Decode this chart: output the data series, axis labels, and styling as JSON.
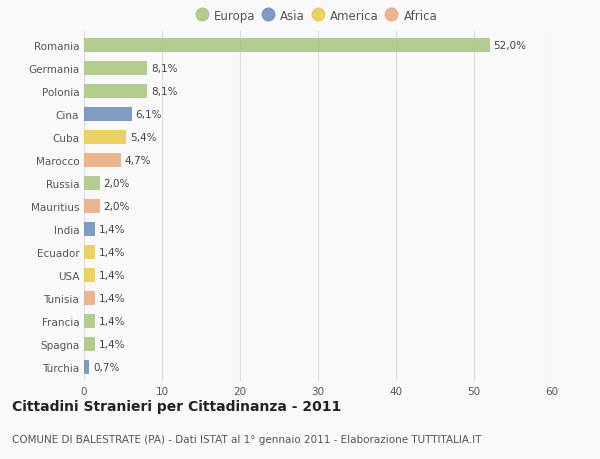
{
  "countries": [
    "Romania",
    "Germania",
    "Polonia",
    "Cina",
    "Cuba",
    "Marocco",
    "Russia",
    "Mauritius",
    "India",
    "Ecuador",
    "USA",
    "Tunisia",
    "Francia",
    "Spagna",
    "Turchia"
  ],
  "values": [
    52.0,
    8.1,
    8.1,
    6.1,
    5.4,
    4.7,
    2.0,
    2.0,
    1.4,
    1.4,
    1.4,
    1.4,
    1.4,
    1.4,
    0.7
  ],
  "labels": [
    "52,0%",
    "8,1%",
    "8,1%",
    "6,1%",
    "5,4%",
    "4,7%",
    "2,0%",
    "2,0%",
    "1,4%",
    "1,4%",
    "1,4%",
    "1,4%",
    "1,4%",
    "1,4%",
    "0,7%"
  ],
  "continents": [
    "Europa",
    "Europa",
    "Europa",
    "Asia",
    "America",
    "Africa",
    "Europa",
    "Africa",
    "Asia",
    "America",
    "America",
    "Africa",
    "Europa",
    "Europa",
    "Asia"
  ],
  "colors": {
    "Europa": "#a8c47e",
    "Asia": "#6b8cba",
    "America": "#e8c94e",
    "Africa": "#e8a87c"
  },
  "legend_order": [
    "Europa",
    "Asia",
    "America",
    "Africa"
  ],
  "xlim": [
    0,
    60
  ],
  "xticks": [
    0,
    10,
    20,
    30,
    40,
    50,
    60
  ],
  "title": "Cittadini Stranieri per Cittadinanza - 2011",
  "subtitle": "COMUNE DI BALESTRATE (PA) - Dati ISTAT al 1° gennaio 2011 - Elaborazione TUTTITALIA.IT",
  "background_color": "#f9f9f9",
  "grid_color": "#dddddd",
  "bar_height": 0.6,
  "title_fontsize": 10,
  "subtitle_fontsize": 7.5,
  "label_fontsize": 7.5,
  "tick_fontsize": 7.5,
  "legend_fontsize": 8.5
}
